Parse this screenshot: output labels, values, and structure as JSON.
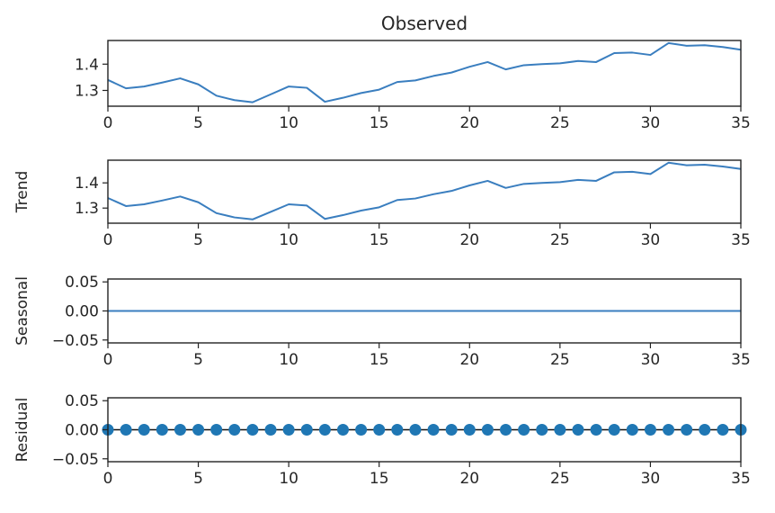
{
  "chart_data": [
    {
      "type": "line",
      "title": "Observed",
      "xlabel": "",
      "ylabel": "",
      "xlim": [
        0,
        35
      ],
      "ylim": [
        1.24,
        1.49
      ],
      "xticks": [
        0,
        5,
        10,
        15,
        20,
        25,
        30,
        35
      ],
      "xtick_labels": [
        "0",
        "5",
        "10",
        "15",
        "20",
        "25",
        "30",
        "35"
      ],
      "yticks": [
        1.3,
        1.4
      ],
      "ytick_labels": [
        "1.3",
        "1.4"
      ],
      "grid": false,
      "series": [
        {
          "x": [
            0,
            1,
            2,
            3,
            4,
            5,
            6,
            7,
            8,
            9,
            10,
            11,
            12,
            13,
            14,
            15,
            16,
            17,
            18,
            19,
            20,
            21,
            22,
            23,
            24,
            25,
            26,
            27,
            28,
            29,
            30,
            31,
            32,
            33,
            34,
            35
          ],
          "values": [
            1.34,
            1.308,
            1.315,
            1.33,
            1.346,
            1.323,
            1.28,
            1.263,
            1.255,
            1.285,
            1.315,
            1.31,
            1.257,
            1.272,
            1.29,
            1.303,
            1.332,
            1.338,
            1.355,
            1.368,
            1.39,
            1.408,
            1.38,
            1.396,
            1.4,
            1.403,
            1.412,
            1.408,
            1.442,
            1.444,
            1.435,
            1.48,
            1.47,
            1.472,
            1.465,
            1.455
          ]
        }
      ]
    },
    {
      "type": "line",
      "title": "",
      "xlabel": "",
      "ylabel": "Trend",
      "xlim": [
        0,
        35
      ],
      "ylim": [
        1.24,
        1.49
      ],
      "xticks": [
        0,
        5,
        10,
        15,
        20,
        25,
        30,
        35
      ],
      "xtick_labels": [
        "0",
        "5",
        "10",
        "15",
        "20",
        "25",
        "30",
        "35"
      ],
      "yticks": [
        1.3,
        1.4
      ],
      "ytick_labels": [
        "1.3",
        "1.4"
      ],
      "grid": false,
      "series": [
        {
          "x": [
            0,
            1,
            2,
            3,
            4,
            5,
            6,
            7,
            8,
            9,
            10,
            11,
            12,
            13,
            14,
            15,
            16,
            17,
            18,
            19,
            20,
            21,
            22,
            23,
            24,
            25,
            26,
            27,
            28,
            29,
            30,
            31,
            32,
            33,
            34,
            35
          ],
          "values": [
            1.34,
            1.308,
            1.315,
            1.33,
            1.346,
            1.323,
            1.28,
            1.263,
            1.255,
            1.285,
            1.315,
            1.31,
            1.257,
            1.272,
            1.29,
            1.303,
            1.332,
            1.338,
            1.355,
            1.368,
            1.39,
            1.408,
            1.38,
            1.396,
            1.4,
            1.403,
            1.412,
            1.408,
            1.442,
            1.444,
            1.435,
            1.48,
            1.47,
            1.472,
            1.465,
            1.455
          ]
        }
      ]
    },
    {
      "type": "line",
      "title": "",
      "xlabel": "",
      "ylabel": "Seasonal",
      "xlim": [
        0,
        35
      ],
      "ylim": [
        -0.055,
        0.055
      ],
      "xticks": [
        0,
        5,
        10,
        15,
        20,
        25,
        30,
        35
      ],
      "xtick_labels": [
        "0",
        "5",
        "10",
        "15",
        "20",
        "25",
        "30",
        "35"
      ],
      "yticks": [
        0.05,
        0.0,
        -0.05
      ],
      "ytick_labels": [
        "0.05",
        "0.00",
        "−0.05"
      ],
      "grid": false,
      "series": [
        {
          "x": [
            0,
            1,
            2,
            3,
            4,
            5,
            6,
            7,
            8,
            9,
            10,
            11,
            12,
            13,
            14,
            15,
            16,
            17,
            18,
            19,
            20,
            21,
            22,
            23,
            24,
            25,
            26,
            27,
            28,
            29,
            30,
            31,
            32,
            33,
            34,
            35
          ],
          "values": [
            0,
            0,
            0,
            0,
            0,
            0,
            0,
            0,
            0,
            0,
            0,
            0,
            0,
            0,
            0,
            0,
            0,
            0,
            0,
            0,
            0,
            0,
            0,
            0,
            0,
            0,
            0,
            0,
            0,
            0,
            0,
            0,
            0,
            0,
            0,
            0
          ]
        }
      ]
    },
    {
      "type": "scatter",
      "title": "",
      "xlabel": "",
      "ylabel": "Residual",
      "xlim": [
        0,
        35
      ],
      "ylim": [
        -0.055,
        0.055
      ],
      "xticks": [
        0,
        5,
        10,
        15,
        20,
        25,
        30,
        35
      ],
      "xtick_labels": [
        "0",
        "5",
        "10",
        "15",
        "20",
        "25",
        "30",
        "35"
      ],
      "yticks": [
        0.05,
        0.0,
        -0.05
      ],
      "ytick_labels": [
        "0.05",
        "0.00",
        "−0.05"
      ],
      "grid": false,
      "baseline": 0,
      "series": [
        {
          "x": [
            0,
            1,
            2,
            3,
            4,
            5,
            6,
            7,
            8,
            9,
            10,
            11,
            12,
            13,
            14,
            15,
            16,
            17,
            18,
            19,
            20,
            21,
            22,
            23,
            24,
            25,
            26,
            27,
            28,
            29,
            30,
            31,
            32,
            33,
            34,
            35
          ],
          "values": [
            0,
            0,
            0,
            0,
            0,
            0,
            0,
            0,
            0,
            0,
            0,
            0,
            0,
            0,
            0,
            0,
            0,
            0,
            0,
            0,
            0,
            0,
            0,
            0,
            0,
            0,
            0,
            0,
            0,
            0,
            0,
            0,
            0,
            0,
            0,
            0
          ]
        }
      ]
    }
  ],
  "colors": {
    "series": "#3a7ebf",
    "marker": "#1f77b4",
    "axes": "#222222",
    "baseline": "#111111",
    "text": "#262626"
  }
}
